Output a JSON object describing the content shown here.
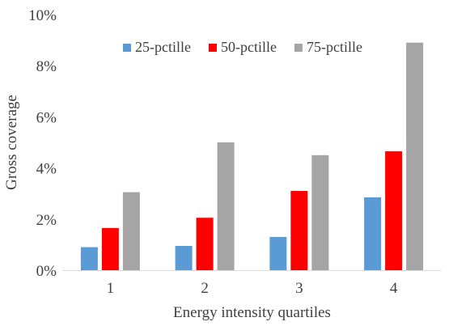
{
  "chart_data": {
    "type": "bar",
    "title": "",
    "xlabel": "Energy intensity quartiles",
    "ylabel": "Gross coverage",
    "categories": [
      "1",
      "2",
      "3",
      "4"
    ],
    "ylim": [
      0,
      10
    ],
    "yticks": [
      0,
      2,
      4,
      6,
      8,
      10
    ],
    "ytick_labels": [
      "0%",
      "2%",
      "4%",
      "6%",
      "8%",
      "10%"
    ],
    "y_unit": "%",
    "grid": false,
    "legend_position": "top",
    "series": [
      {
        "name": "25-pctille",
        "color": "#5b9bd5",
        "values": [
          0.9,
          0.95,
          1.3,
          2.85
        ]
      },
      {
        "name": "50-pctille",
        "color": "#ff0000",
        "values": [
          1.65,
          2.05,
          3.1,
          4.65
        ]
      },
      {
        "name": "75-pctille",
        "color": "#a5a5a5",
        "values": [
          3.05,
          5.0,
          4.5,
          8.9
        ]
      }
    ]
  }
}
